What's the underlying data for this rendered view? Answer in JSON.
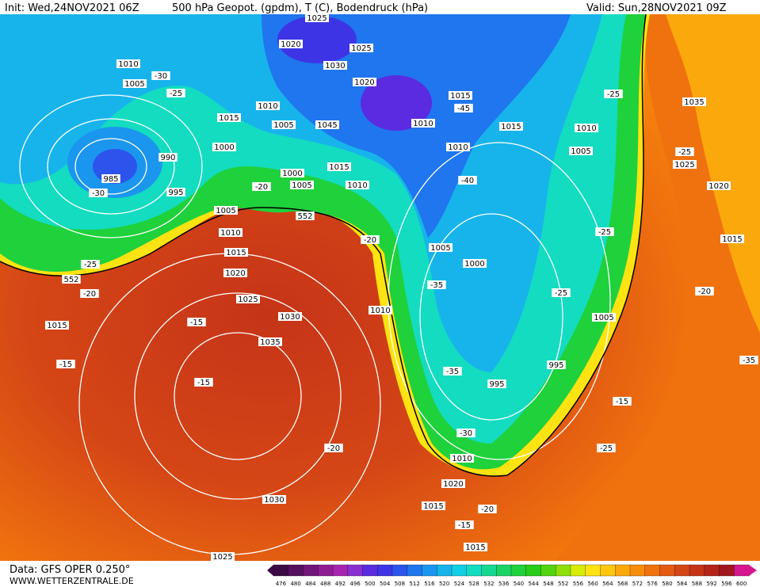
{
  "header": {
    "init": "Init: Wed,24NOV2021 06Z",
    "title": "500 hPa Geopot. (gpdm), T (C), Bodendruck (hPa)",
    "valid": "Valid: Sun,28NOV2021 09Z"
  },
  "footer": {
    "data": "Data: GFS OPER 0.250°",
    "site": "WWW.WETTERZENTRALE.DE"
  },
  "colorbar": {
    "values": [
      476,
      480,
      484,
      488,
      492,
      496,
      500,
      504,
      508,
      512,
      516,
      520,
      524,
      528,
      532,
      536,
      540,
      544,
      548,
      552,
      556,
      560,
      564,
      568,
      572,
      576,
      580,
      584,
      588,
      592,
      596,
      600
    ],
    "colors": [
      "#3b0a45",
      "#55105f",
      "#72167a",
      "#8f1c95",
      "#a724b0",
      "#8a2fd0",
      "#5a2be0",
      "#3d34e6",
      "#2c54ec",
      "#1f76ee",
      "#1b96ee",
      "#17b4ec",
      "#11cfe6",
      "#13dcc0",
      "#17d893",
      "#1ad466",
      "#1fd13b",
      "#28cc1a",
      "#52d40e",
      "#8ee00a",
      "#d8ec08",
      "#fde311",
      "#fdc60f",
      "#fba80d",
      "#f88d0c",
      "#f0720e",
      "#e35a12",
      "#d54616",
      "#c63418",
      "#b42418",
      "#a1171c",
      "#d6168e"
    ]
  },
  "map_labels": [
    "1025",
    "1020",
    "1025",
    "1030",
    "1020",
    "1010",
    "1005",
    "-30",
    "-25",
    "1015",
    "1010",
    "1005",
    "1045",
    "1000",
    "990",
    "985",
    "-30",
    "995",
    "1000",
    "1005",
    "1015",
    "1010",
    "1005",
    "-20",
    "552",
    "1010",
    "1015",
    "1020",
    "-25",
    "552",
    "-20",
    "1025",
    "1030",
    "-15",
    "1015",
    "1035",
    "-15",
    "-15",
    "-20",
    "1030",
    "1025",
    "1015",
    "-45",
    "1010",
    "1015",
    "1010",
    "-40",
    "1010",
    "1005",
    "-25",
    "1035",
    "-25",
    "1025",
    "1020",
    "-20",
    "1005",
    "1000",
    "-25",
    "1015",
    "-35",
    "-25",
    "-20",
    "1010",
    "1005",
    "-35",
    "995",
    "995",
    "-15",
    "-35",
    "-30",
    "1010",
    "-25",
    "1020",
    "1015",
    "-20",
    "-15",
    "1015"
  ]
}
